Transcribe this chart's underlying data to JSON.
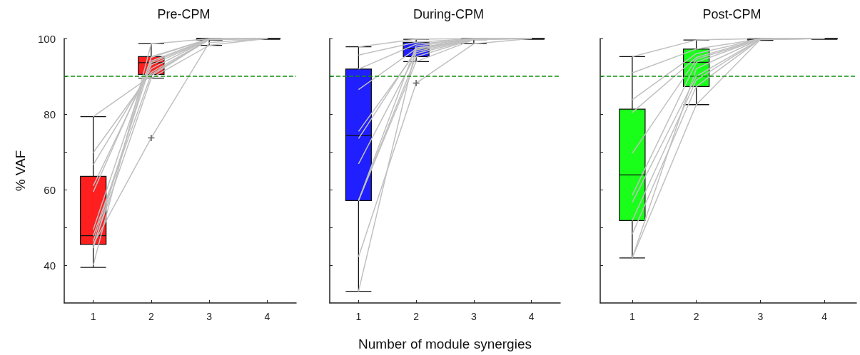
{
  "chart_data": [
    {
      "type": "box",
      "title": "Pre-CPM",
      "ylabel": "% VAF",
      "categories": [
        "1",
        "2",
        "3",
        "4"
      ],
      "ylim": [
        30,
        100
      ],
      "yticks": [
        40,
        {
          "value": 50,
          "label": null
        },
        60,
        {
          "value": 70,
          "label": null
        },
        80,
        {
          "value": 90,
          "label": null
        },
        100
      ],
      "ref_lines": [
        {
          "axis": "y",
          "value": 90,
          "color": "#109010",
          "line_style": "dashed"
        }
      ],
      "series": [
        {
          "color": "#ff1f1f",
          "boxes": [
            {
              "low": 39.4,
              "q1": 45.5,
              "median": 47.8,
              "q3": 63.5,
              "high": 79.3
            },
            {
              "low": 89.5,
              "q1": 90.5,
              "median": 93.6,
              "q3": 95.2,
              "high": 98.6,
              "outliers": [
                73.7
              ]
            },
            {
              "low": 98.2,
              "q1": 99.6,
              "median": 99.7,
              "q3": 99.8,
              "high": 100
            },
            {
              "low": 99.8,
              "q1": 99.9,
              "median": 100,
              "q3": 100,
              "high": 100
            }
          ]
        },
        {
          "type": "line",
          "color": "#c0c0c0",
          "values": [
            79.3,
            90.1,
            99.8,
            100
          ]
        },
        {
          "type": "line",
          "color": "#c0c0c0",
          "values": [
            69.8,
            91,
            99.8,
            100
          ]
        },
        {
          "type": "line",
          "color": "#c0c0c0",
          "values": [
            66.6,
            92,
            99.9,
            100
          ]
        },
        {
          "type": "line",
          "color": "#c0c0c0",
          "values": [
            61,
            93,
            99.8,
            100
          ]
        },
        {
          "type": "line",
          "color": "#c0c0c0",
          "values": [
            59.4,
            94,
            99.9,
            100
          ]
        },
        {
          "type": "line",
          "color": "#c0c0c0",
          "values": [
            49.4,
            95,
            99.9,
            100
          ]
        },
        {
          "type": "line",
          "color": "#c0c0c0",
          "values": [
            46.3,
            93.6,
            99.8,
            100
          ]
        },
        {
          "type": "line",
          "color": "#c0c0c0",
          "values": [
            45.5,
            73.7,
            98.9,
            100
          ]
        },
        {
          "type": "line",
          "color": "#c0c0c0",
          "values": [
            44.5,
            95.2,
            99.9,
            100
          ]
        },
        {
          "type": "line",
          "color": "#c0c0c0",
          "values": [
            40,
            98.6,
            99.9,
            100
          ]
        },
        {
          "type": "line",
          "color": "#c0c0c0",
          "values": [
            47.8,
            90.5,
            99.7,
            100
          ]
        },
        {
          "type": "line",
          "color": "#c0c0c0",
          "values": [
            45,
            89.5,
            98.2,
            100
          ]
        }
      ]
    },
    {
      "type": "box",
      "title": "During-CPM",
      "xlabel": "Number of module synergies",
      "categories": [
        "1",
        "2",
        "3",
        "4"
      ],
      "ylim": [
        30,
        100
      ],
      "tick_labels": "x",
      "yticks": [
        40,
        {
          "value": 50,
          "label": null
        },
        60,
        {
          "value": 70,
          "label": null
        },
        80,
        {
          "value": 90,
          "label": null
        },
        100
      ],
      "ref_lines": [
        {
          "axis": "y",
          "value": 90,
          "color": "#109010",
          "line_style": "dashed"
        }
      ],
      "series": [
        {
          "color": "#1f1fff",
          "boxes": [
            {
              "low": 33.1,
              "q1": 57.1,
              "median": 74.3,
              "q3": 91.9,
              "high": 97.8
            },
            {
              "low": 93.9,
              "q1": 95.2,
              "median": 97.3,
              "q3": 99,
              "high": 99.8,
              "outliers": [
                88.2
              ]
            },
            {
              "low": 98.6,
              "q1": 99.7,
              "median": 99.8,
              "q3": 99.9,
              "high": 100
            },
            {
              "low": 99.8,
              "q1": 99.9,
              "median": 100,
              "q3": 100,
              "high": 100
            }
          ]
        },
        {
          "type": "line",
          "color": "#c0c0c0",
          "values": [
            97.8,
            99.8,
            100,
            100
          ]
        },
        {
          "type": "line",
          "color": "#c0c0c0",
          "values": [
            95.6,
            99,
            100,
            100
          ]
        },
        {
          "type": "line",
          "color": "#c0c0c0",
          "values": [
            91.9,
            98.5,
            99.9,
            100
          ]
        },
        {
          "type": "line",
          "color": "#c0c0c0",
          "values": [
            86.5,
            97.3,
            99.9,
            100
          ]
        },
        {
          "type": "line",
          "color": "#c0c0c0",
          "values": [
            75.4,
            96.5,
            99.9,
            100
          ]
        },
        {
          "type": "line",
          "color": "#c0c0c0",
          "values": [
            73.5,
            97,
            99.9,
            100
          ]
        },
        {
          "type": "line",
          "color": "#c0c0c0",
          "values": [
            66.8,
            96,
            99.8,
            100
          ]
        },
        {
          "type": "line",
          "color": "#c0c0c0",
          "values": [
            57.1,
            95.2,
            99.8,
            100
          ]
        },
        {
          "type": "line",
          "color": "#c0c0c0",
          "values": [
            57.1,
            98,
            99.9,
            100
          ]
        },
        {
          "type": "line",
          "color": "#c0c0c0",
          "values": [
            57.1,
            93.9,
            99.7,
            100
          ]
        },
        {
          "type": "line",
          "color": "#c0c0c0",
          "values": [
            42.2,
            88.2,
            98.6,
            100
          ]
        },
        {
          "type": "line",
          "color": "#c0c0c0",
          "values": [
            33.1,
            97.5,
            99.8,
            100
          ]
        }
      ]
    },
    {
      "type": "box",
      "title": "Post-CPM",
      "categories": [
        "1",
        "2",
        "3",
        "4"
      ],
      "ylim": [
        30,
        100
      ],
      "tick_labels": "x",
      "yticks": [
        40,
        {
          "value": 50,
          "label": null
        },
        60,
        {
          "value": 70,
          "label": null
        },
        80,
        {
          "value": 90,
          "label": null
        },
        100
      ],
      "ref_lines": [
        {
          "axis": "y",
          "value": 90,
          "color": "#109010",
          "line_style": "dashed"
        }
      ],
      "series": [
        {
          "color": "#1aff1a",
          "boxes": [
            {
              "low": 41.9,
              "q1": 51.8,
              "median": 63.9,
              "q3": 81.3,
              "high": 95.2
            },
            {
              "low": 82.5,
              "q1": 87.3,
              "median": 93.7,
              "q3": 97.2,
              "high": 99.6
            },
            {
              "low": 99.5,
              "q1": 99.7,
              "median": 99.8,
              "q3": 99.9,
              "high": 100
            },
            {
              "low": 99.8,
              "q1": 99.9,
              "median": 100,
              "q3": 100,
              "high": 100
            }
          ]
        },
        {
          "type": "line",
          "color": "#c0c0c0",
          "values": [
            95.2,
            99.6,
            100,
            100
          ]
        },
        {
          "type": "line",
          "color": "#c0c0c0",
          "values": [
            90.9,
            97.2,
            99.9,
            100
          ]
        },
        {
          "type": "line",
          "color": "#c0c0c0",
          "values": [
            83.8,
            96,
            99.9,
            100
          ]
        },
        {
          "type": "line",
          "color": "#c0c0c0",
          "values": [
            80.4,
            95,
            99.9,
            100
          ]
        },
        {
          "type": "line",
          "color": "#c0c0c0",
          "values": [
            69.6,
            94.5,
            99.8,
            100
          ]
        },
        {
          "type": "line",
          "color": "#c0c0c0",
          "values": [
            58.5,
            93.7,
            99.9,
            100
          ]
        },
        {
          "type": "line",
          "color": "#c0c0c0",
          "values": [
            56.6,
            90,
            99.8,
            100
          ]
        },
        {
          "type": "line",
          "color": "#c0c0c0",
          "values": [
            51.8,
            89,
            99.8,
            100
          ]
        },
        {
          "type": "line",
          "color": "#c0c0c0",
          "values": [
            48.2,
            87.3,
            99.8,
            100
          ]
        },
        {
          "type": "line",
          "color": "#c0c0c0",
          "values": [
            41.9,
            82.5,
            99.7,
            100
          ]
        },
        {
          "type": "line",
          "color": "#c0c0c0",
          "values": [
            41.9,
            92,
            99.9,
            100
          ]
        }
      ]
    }
  ]
}
